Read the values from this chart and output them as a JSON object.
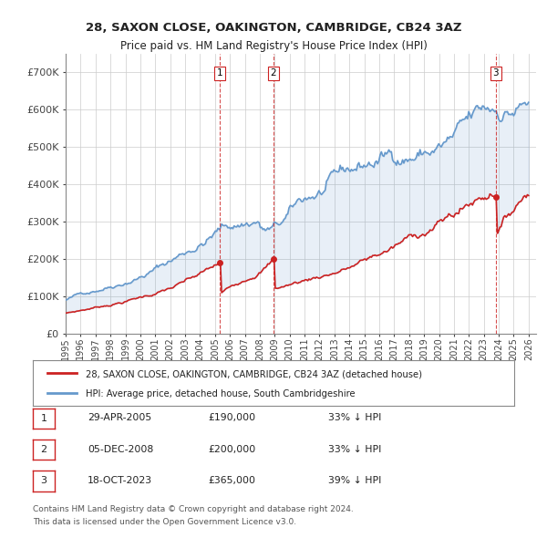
{
  "title1": "28, SAXON CLOSE, OAKINGTON, CAMBRIDGE, CB24 3AZ",
  "title2": "Price paid vs. HM Land Registry's House Price Index (HPI)",
  "ylabel_ticks": [
    "£0",
    "£100K",
    "£200K",
    "£300K",
    "£400K",
    "£500K",
    "£600K",
    "£700K"
  ],
  "ytick_values": [
    0,
    100000,
    200000,
    300000,
    400000,
    500000,
    600000,
    700000
  ],
  "ylim": [
    0,
    750000
  ],
  "xlim_start": 1995.0,
  "xlim_end": 2026.5,
  "transactions": [
    {
      "date_decimal": 2005.33,
      "price": 190000,
      "label": "1"
    },
    {
      "date_decimal": 2008.92,
      "price": 200000,
      "label": "2"
    },
    {
      "date_decimal": 2023.79,
      "price": 365000,
      "label": "3"
    }
  ],
  "legend_line1": "28, SAXON CLOSE, OAKINGTON, CAMBRIDGE, CB24 3AZ (detached house)",
  "legend_line2": "HPI: Average price, detached house, South Cambridgeshire",
  "table_rows": [
    {
      "num": "1",
      "date": "29-APR-2005",
      "price": "£190,000",
      "pct": "33% ↓ HPI"
    },
    {
      "num": "2",
      "date": "05-DEC-2008",
      "price": "£200,000",
      "pct": "33% ↓ HPI"
    },
    {
      "num": "3",
      "date": "18-OCT-2023",
      "price": "£365,000",
      "pct": "39% ↓ HPI"
    }
  ],
  "footnote1": "Contains HM Land Registry data © Crown copyright and database right 2024.",
  "footnote2": "This data is licensed under the Open Government Licence v3.0.",
  "hpi_color": "#6699cc",
  "price_color": "#cc2222",
  "vline_color": "#cc2222",
  "grid_color": "#cccccc",
  "bg_color": "#f0f4ff",
  "plot_bg": "#ffffff"
}
